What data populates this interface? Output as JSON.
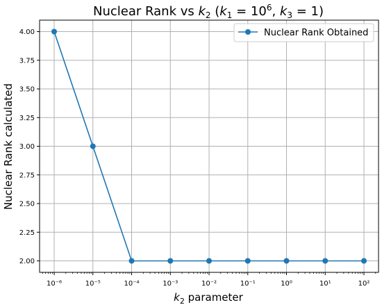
{
  "chart_data": {
    "type": "line",
    "title": "Nuclear Rank vs k₂ (k₁ = 10⁶, k₃ = 1)",
    "xlabel": "k₂ parameter",
    "ylabel": "Nuclear Rank calculated",
    "x_scale": "log",
    "x": [
      1e-06,
      1e-05,
      0.0001,
      0.001,
      0.01,
      0.1,
      1.0,
      10.0,
      100.0
    ],
    "x_tick_labels": [
      "10⁻⁶",
      "10⁻⁵",
      "10⁻⁴",
      "10⁻³",
      "10⁻²",
      "10⁻¹",
      "10⁰",
      "10¹",
      "10²"
    ],
    "y_ticks": [
      2.0,
      2.25,
      2.5,
      2.75,
      3.0,
      3.25,
      3.5,
      3.75,
      4.0
    ],
    "y_tick_labels": [
      "2.00",
      "2.25",
      "2.50",
      "2.75",
      "3.00",
      "3.25",
      "3.50",
      "3.75",
      "4.00"
    ],
    "ylim": [
      1.9,
      4.1
    ],
    "grid": true,
    "legend_position": "top-right",
    "series": [
      {
        "name": "Nuclear Rank Obtained",
        "color": "#1f77b4",
        "marker": "circle",
        "values": [
          4,
          3,
          2,
          2,
          2,
          2,
          2,
          2,
          2
        ]
      }
    ]
  }
}
